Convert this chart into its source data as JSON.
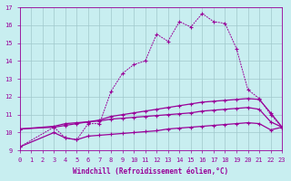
{
  "xlabel": "Windchill (Refroidissement éolien,°C)",
  "bg_color": "#c8eef0",
  "line_color": "#990099",
  "grid_color": "#a0c8cc",
  "x_ticks": [
    0,
    1,
    2,
    3,
    4,
    5,
    6,
    7,
    8,
    9,
    10,
    11,
    12,
    13,
    14,
    15,
    16,
    17,
    18,
    19,
    20,
    21,
    22,
    23
  ],
  "ylim": [
    9,
    17
  ],
  "xlim": [
    0,
    23
  ],
  "line1_x": [
    0,
    3,
    4,
    5,
    6,
    7,
    8,
    9,
    10,
    11,
    12,
    13,
    14,
    15,
    16,
    17,
    18,
    19,
    20,
    21,
    22,
    23
  ],
  "line1_y": [
    9.2,
    10.3,
    9.7,
    9.6,
    10.5,
    10.5,
    12.3,
    13.3,
    13.8,
    14.0,
    15.5,
    15.1,
    16.2,
    15.9,
    16.65,
    16.2,
    16.1,
    14.7,
    12.4,
    11.9,
    11.0,
    10.3
  ],
  "line2_x": [
    0,
    3,
    4,
    5,
    6,
    7,
    8,
    9,
    10,
    11,
    12,
    13,
    14,
    15,
    16,
    17,
    18,
    19,
    20,
    21,
    22,
    23
  ],
  "line2_y": [
    10.2,
    10.3,
    10.4,
    10.5,
    10.6,
    10.7,
    10.9,
    11.0,
    11.1,
    11.2,
    11.3,
    11.4,
    11.5,
    11.6,
    11.7,
    11.75,
    11.8,
    11.85,
    11.9,
    11.85,
    11.1,
    10.3
  ],
  "line3_x": [
    0,
    3,
    4,
    5,
    6,
    7,
    8,
    9,
    10,
    11,
    12,
    13,
    14,
    15,
    16,
    17,
    18,
    19,
    20,
    21,
    22,
    23
  ],
  "line3_y": [
    10.2,
    10.35,
    10.5,
    10.55,
    10.6,
    10.65,
    10.75,
    10.8,
    10.85,
    10.9,
    10.95,
    11.0,
    11.05,
    11.1,
    11.2,
    11.25,
    11.3,
    11.35,
    11.4,
    11.3,
    10.6,
    10.3
  ],
  "line4_x": [
    0,
    3,
    4,
    5,
    6,
    7,
    8,
    9,
    10,
    11,
    12,
    13,
    14,
    15,
    16,
    17,
    18,
    19,
    20,
    21,
    22,
    23
  ],
  "line4_y": [
    9.2,
    10.0,
    9.7,
    9.6,
    9.8,
    9.85,
    9.9,
    9.95,
    10.0,
    10.05,
    10.1,
    10.2,
    10.25,
    10.3,
    10.35,
    10.4,
    10.45,
    10.5,
    10.55,
    10.5,
    10.15,
    10.3
  ]
}
